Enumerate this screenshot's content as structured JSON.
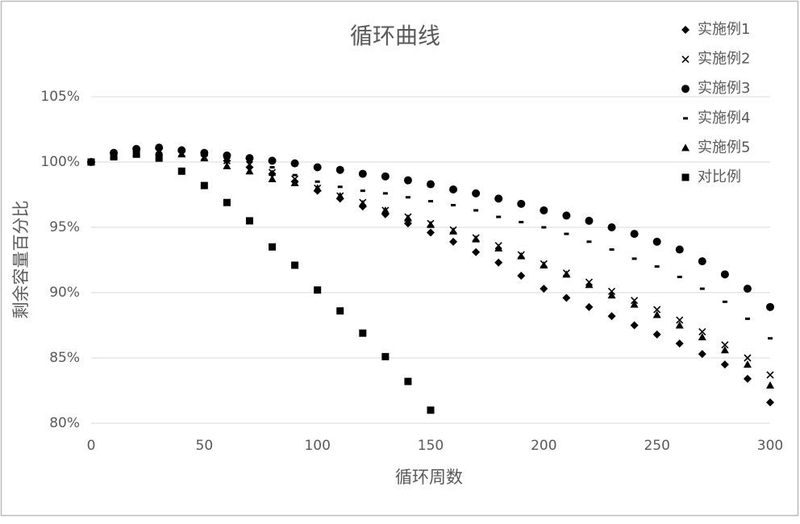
{
  "chart_data": {
    "type": "scatter",
    "title": "循环曲线",
    "x_label": "循环周数",
    "y_label": "剩余容量百分比",
    "x": [
      0,
      10,
      20,
      30,
      40,
      50,
      60,
      70,
      80,
      90,
      100,
      110,
      120,
      130,
      140,
      150,
      160,
      170,
      180,
      190,
      200,
      210,
      220,
      230,
      240,
      250,
      260,
      270,
      280,
      290,
      300
    ],
    "series": [
      {
        "name": "实施例1",
        "color": "#000000",
        "marker": "diamond",
        "values": [
          100,
          100.7,
          101,
          101,
          100.8,
          100.5,
          100.1,
          99.6,
          99.1,
          98.5,
          97.8,
          97.2,
          96.6,
          96.0,
          95.3,
          94.6,
          93.9,
          93.1,
          92.3,
          91.3,
          90.3,
          89.6,
          88.9,
          88.2,
          87.5,
          86.8,
          86.1,
          85.3,
          84.5,
          83.4,
          81.6
        ]
      },
      {
        "name": "实施例2",
        "color": "#000000",
        "marker": "cross",
        "values": [
          100,
          100.6,
          100.9,
          100.9,
          100.7,
          100.4,
          100.1,
          99.8,
          99.2,
          98.7,
          98.0,
          97.4,
          96.9,
          96.3,
          95.8,
          95.3,
          94.8,
          94.2,
          93.6,
          92.9,
          92.2,
          91.5,
          90.8,
          90.1,
          89.4,
          88.7,
          87.9,
          87.0,
          86.0,
          85.0,
          83.7
        ]
      },
      {
        "name": "实施例3",
        "color": "#000000",
        "marker": "circle",
        "values": [
          100,
          100.7,
          101,
          101.1,
          100.9,
          100.7,
          100.5,
          100.3,
          100.1,
          99.9,
          99.6,
          99.4,
          99.1,
          98.9,
          98.6,
          98.3,
          97.9,
          97.6,
          97.2,
          96.8,
          96.3,
          95.9,
          95.5,
          95.0,
          94.5,
          93.9,
          93.3,
          92.4,
          91.4,
          90.3,
          88.9
        ]
      },
      {
        "name": "实施例4",
        "color": "#000000",
        "marker": "dash",
        "values": [
          100,
          100.6,
          100.9,
          101,
          100.8,
          100.6,
          100.3,
          100,
          99.6,
          99,
          98.5,
          98.1,
          97.8,
          97.6,
          97.3,
          97,
          96.7,
          96.3,
          95.8,
          95.4,
          95.0,
          94.5,
          93.9,
          93.3,
          92.6,
          92.0,
          91.2,
          90.3,
          89.3,
          88.0,
          86.5
        ]
      },
      {
        "name": "实施例5",
        "color": "#000000",
        "marker": "triangle",
        "values": [
          100,
          100.5,
          100.7,
          100.8,
          100.6,
          100.3,
          99.7,
          99.3,
          98.7,
          98.4,
          98.0,
          97.4,
          96.8,
          96.3,
          95.7,
          95.2,
          94.7,
          94.1,
          93.4,
          92.8,
          92.1,
          91.4,
          90.6,
          89.8,
          89.1,
          88.3,
          87.5,
          86.6,
          85.6,
          84.5,
          82.9
        ]
      },
      {
        "name": "对比例",
        "color": "#000000",
        "marker": "square",
        "values": [
          100,
          100.4,
          100.6,
          100.3,
          99.3,
          98.2,
          96.9,
          95.5,
          93.5,
          92.1,
          90.2,
          88.6,
          86.9,
          85.1,
          83.2,
          81.0,
          null,
          null,
          null,
          null,
          null,
          null,
          null,
          null,
          null,
          null,
          null,
          null,
          null,
          null,
          null
        ]
      }
    ],
    "xlim": [
      0,
      300
    ],
    "xticks": [
      0,
      50,
      100,
      150,
      200,
      250,
      300
    ],
    "ylim": [
      80,
      105
    ],
    "yticks": [
      {
        "value": 80,
        "label": "80%"
      },
      {
        "value": 85,
        "label": "85%"
      },
      {
        "value": 90,
        "label": "90%"
      },
      {
        "value": 95,
        "label": "95%"
      },
      {
        "value": 100,
        "label": "100%"
      },
      {
        "value": 105,
        "label": "105%"
      }
    ],
    "grid": true,
    "legend": "upper right"
  }
}
